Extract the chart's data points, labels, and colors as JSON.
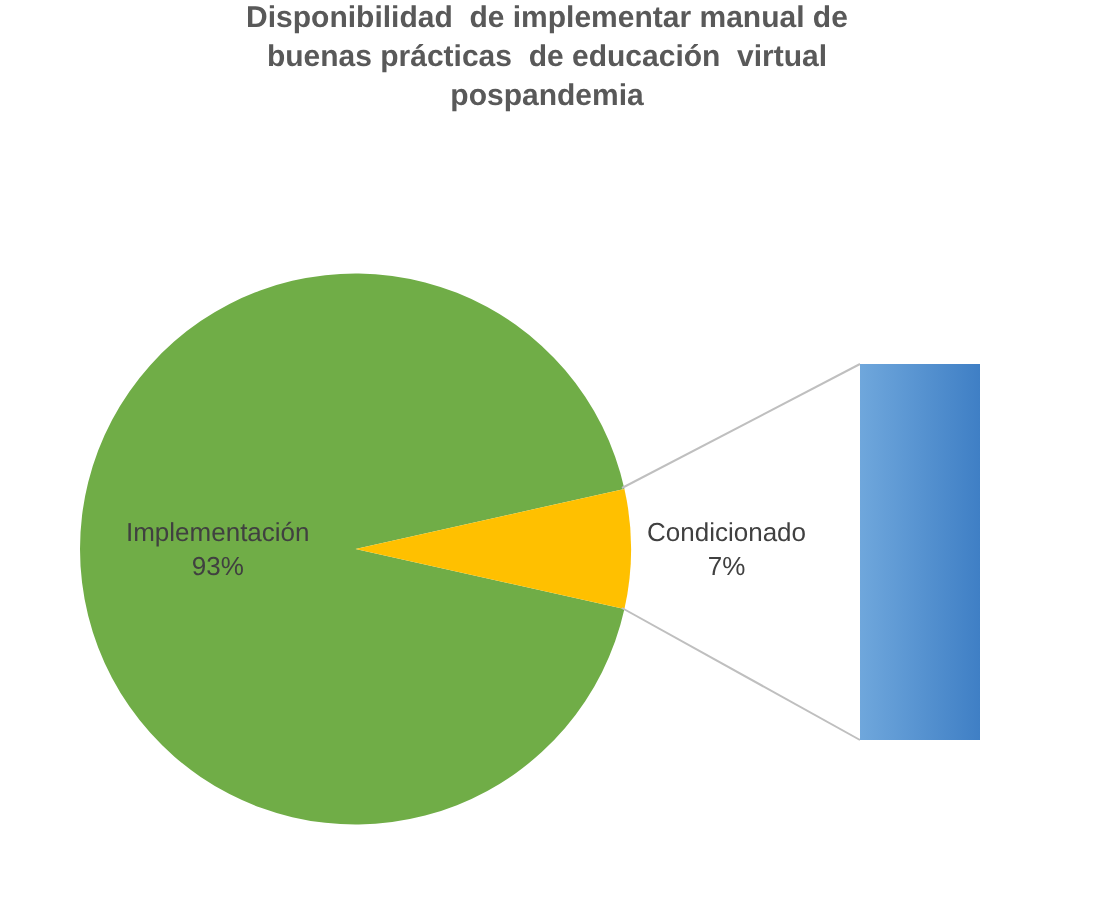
{
  "chart_data": {
    "type": "pie",
    "title": "Disponibilidad  de implementar manual de buenas prácticas  de educación  virtual pospandemia",
    "categories": [
      "Implementación",
      "Condicionado"
    ],
    "values": [
      93,
      7
    ],
    "colors": [
      "#70ad47",
      "#ffc000"
    ],
    "value_labels": [
      "93%",
      "7%"
    ],
    "legend": false
  }
}
